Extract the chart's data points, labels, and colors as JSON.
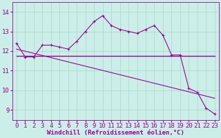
{
  "xlabel": "Windchill (Refroidissement éolien,°C)",
  "ylabel": "",
  "background_color": "#cceee8",
  "line_color": "#990099",
  "grid_color": "#aaddcc",
  "xlim": [
    -0.5,
    23.5
  ],
  "ylim": [
    8.5,
    14.5
  ],
  "yticks": [
    9,
    10,
    11,
    12,
    13,
    14
  ],
  "xticks": [
    0,
    1,
    2,
    3,
    4,
    5,
    6,
    7,
    8,
    9,
    10,
    11,
    12,
    13,
    14,
    15,
    16,
    17,
    18,
    19,
    20,
    21,
    22,
    23
  ],
  "series1_x": [
    0,
    1,
    2,
    3,
    4,
    5,
    6,
    7,
    8,
    9,
    10,
    11,
    12,
    13,
    14,
    15,
    16,
    17,
    18,
    19,
    20,
    21,
    22,
    23
  ],
  "series1_y": [
    12.4,
    11.7,
    11.7,
    12.3,
    12.3,
    12.2,
    12.1,
    12.5,
    13.0,
    13.5,
    13.8,
    13.3,
    13.1,
    13.0,
    12.9,
    13.1,
    13.3,
    12.8,
    11.8,
    11.8,
    10.1,
    9.9,
    9.1,
    8.8
  ],
  "series2_x": [
    0,
    23
  ],
  "series2_y": [
    11.75,
    11.75
  ],
  "series3_x": [
    0,
    23
  ],
  "series3_y": [
    12.1,
    9.6
  ]
}
